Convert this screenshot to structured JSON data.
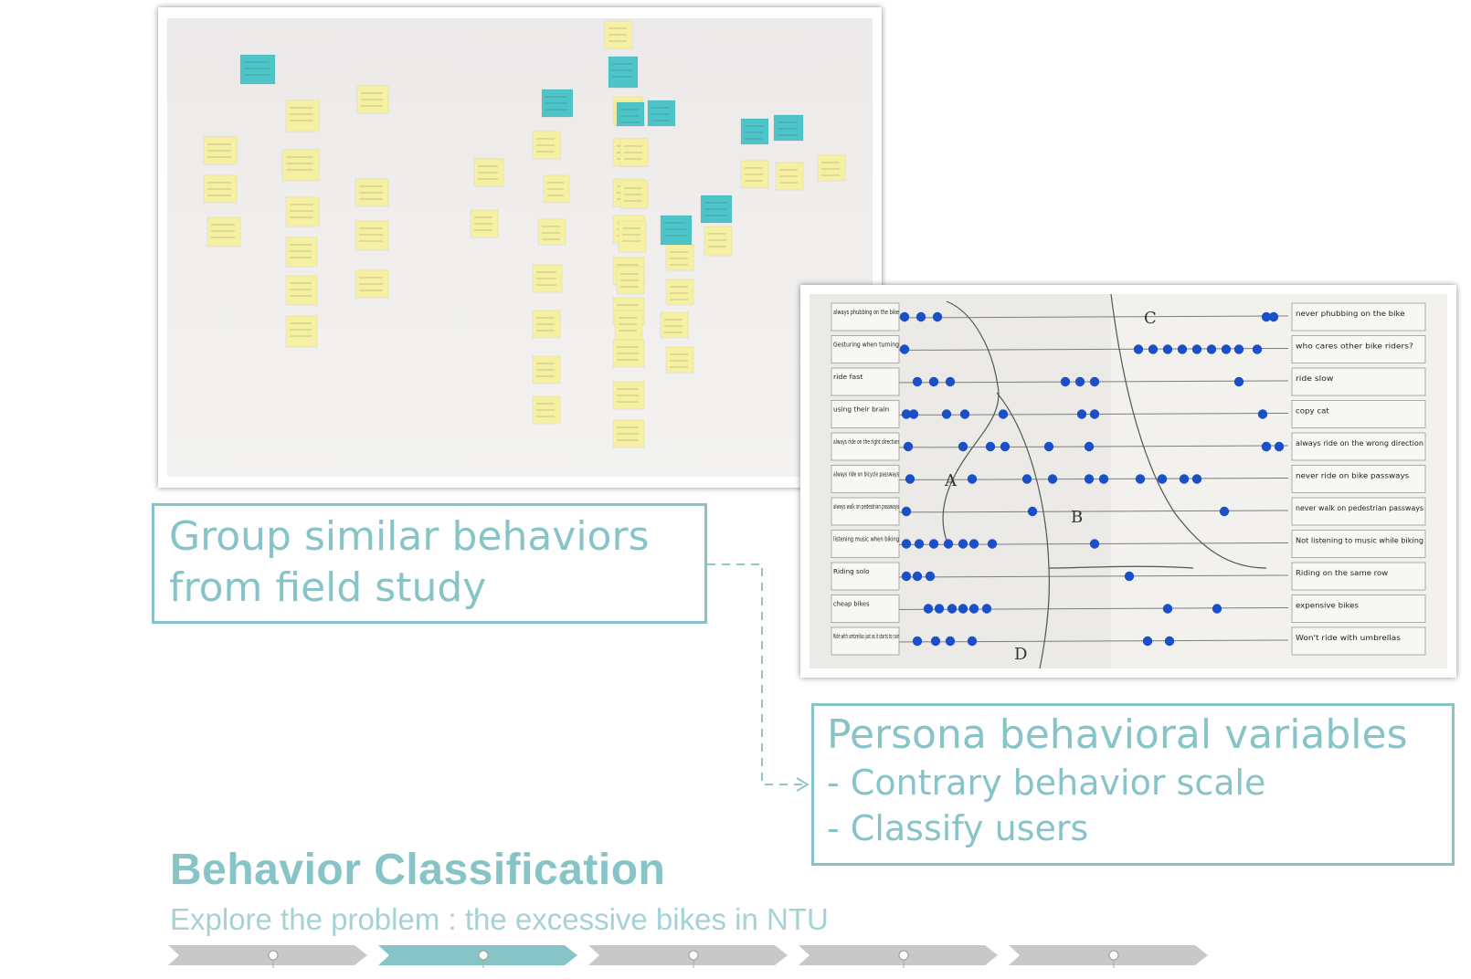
{
  "callouts": {
    "group": {
      "line1": "Group similar behaviors",
      "line2": "from field study"
    },
    "persona": {
      "title": "Persona behavioral variables",
      "items": [
        "- Contrary behavior scale",
        "- Classify users"
      ]
    }
  },
  "slide": {
    "title": "Behavior Classification",
    "subtitle": "Explore the problem : the excessive bikes in NTU"
  },
  "progress": {
    "steps": 5,
    "active_step": 2
  },
  "board": {
    "left_labels": [
      "always phubbing on the bike",
      "Gesturing when turning",
      "ride fast",
      "using their brain",
      "always ride on the right direction",
      "always ride on bicycle passways",
      "always walk on pedestrian passways",
      "listening music when biking",
      "Riding solo",
      "cheap bikes",
      "Ride with umbrellas just as it starts to rain"
    ],
    "right_labels": [
      "never phubbing on the bike",
      "who cares other bike riders?",
      "ride slow",
      "copy cat",
      "always ride on the wrong direction",
      "never ride on bike passways",
      "never walk on pedestrian passways",
      "Not listening to music while biking",
      "Riding on the same row",
      "expensive bikes",
      "Won't ride with umbrellas"
    ],
    "region_labels": [
      "A",
      "B",
      "C",
      "D"
    ]
  },
  "colors": {
    "accent": "#86c4c8",
    "dot": "#1a4fc8",
    "sticky_yellow": "#f6f1a2",
    "sticky_teal": "#4dc4c8"
  }
}
